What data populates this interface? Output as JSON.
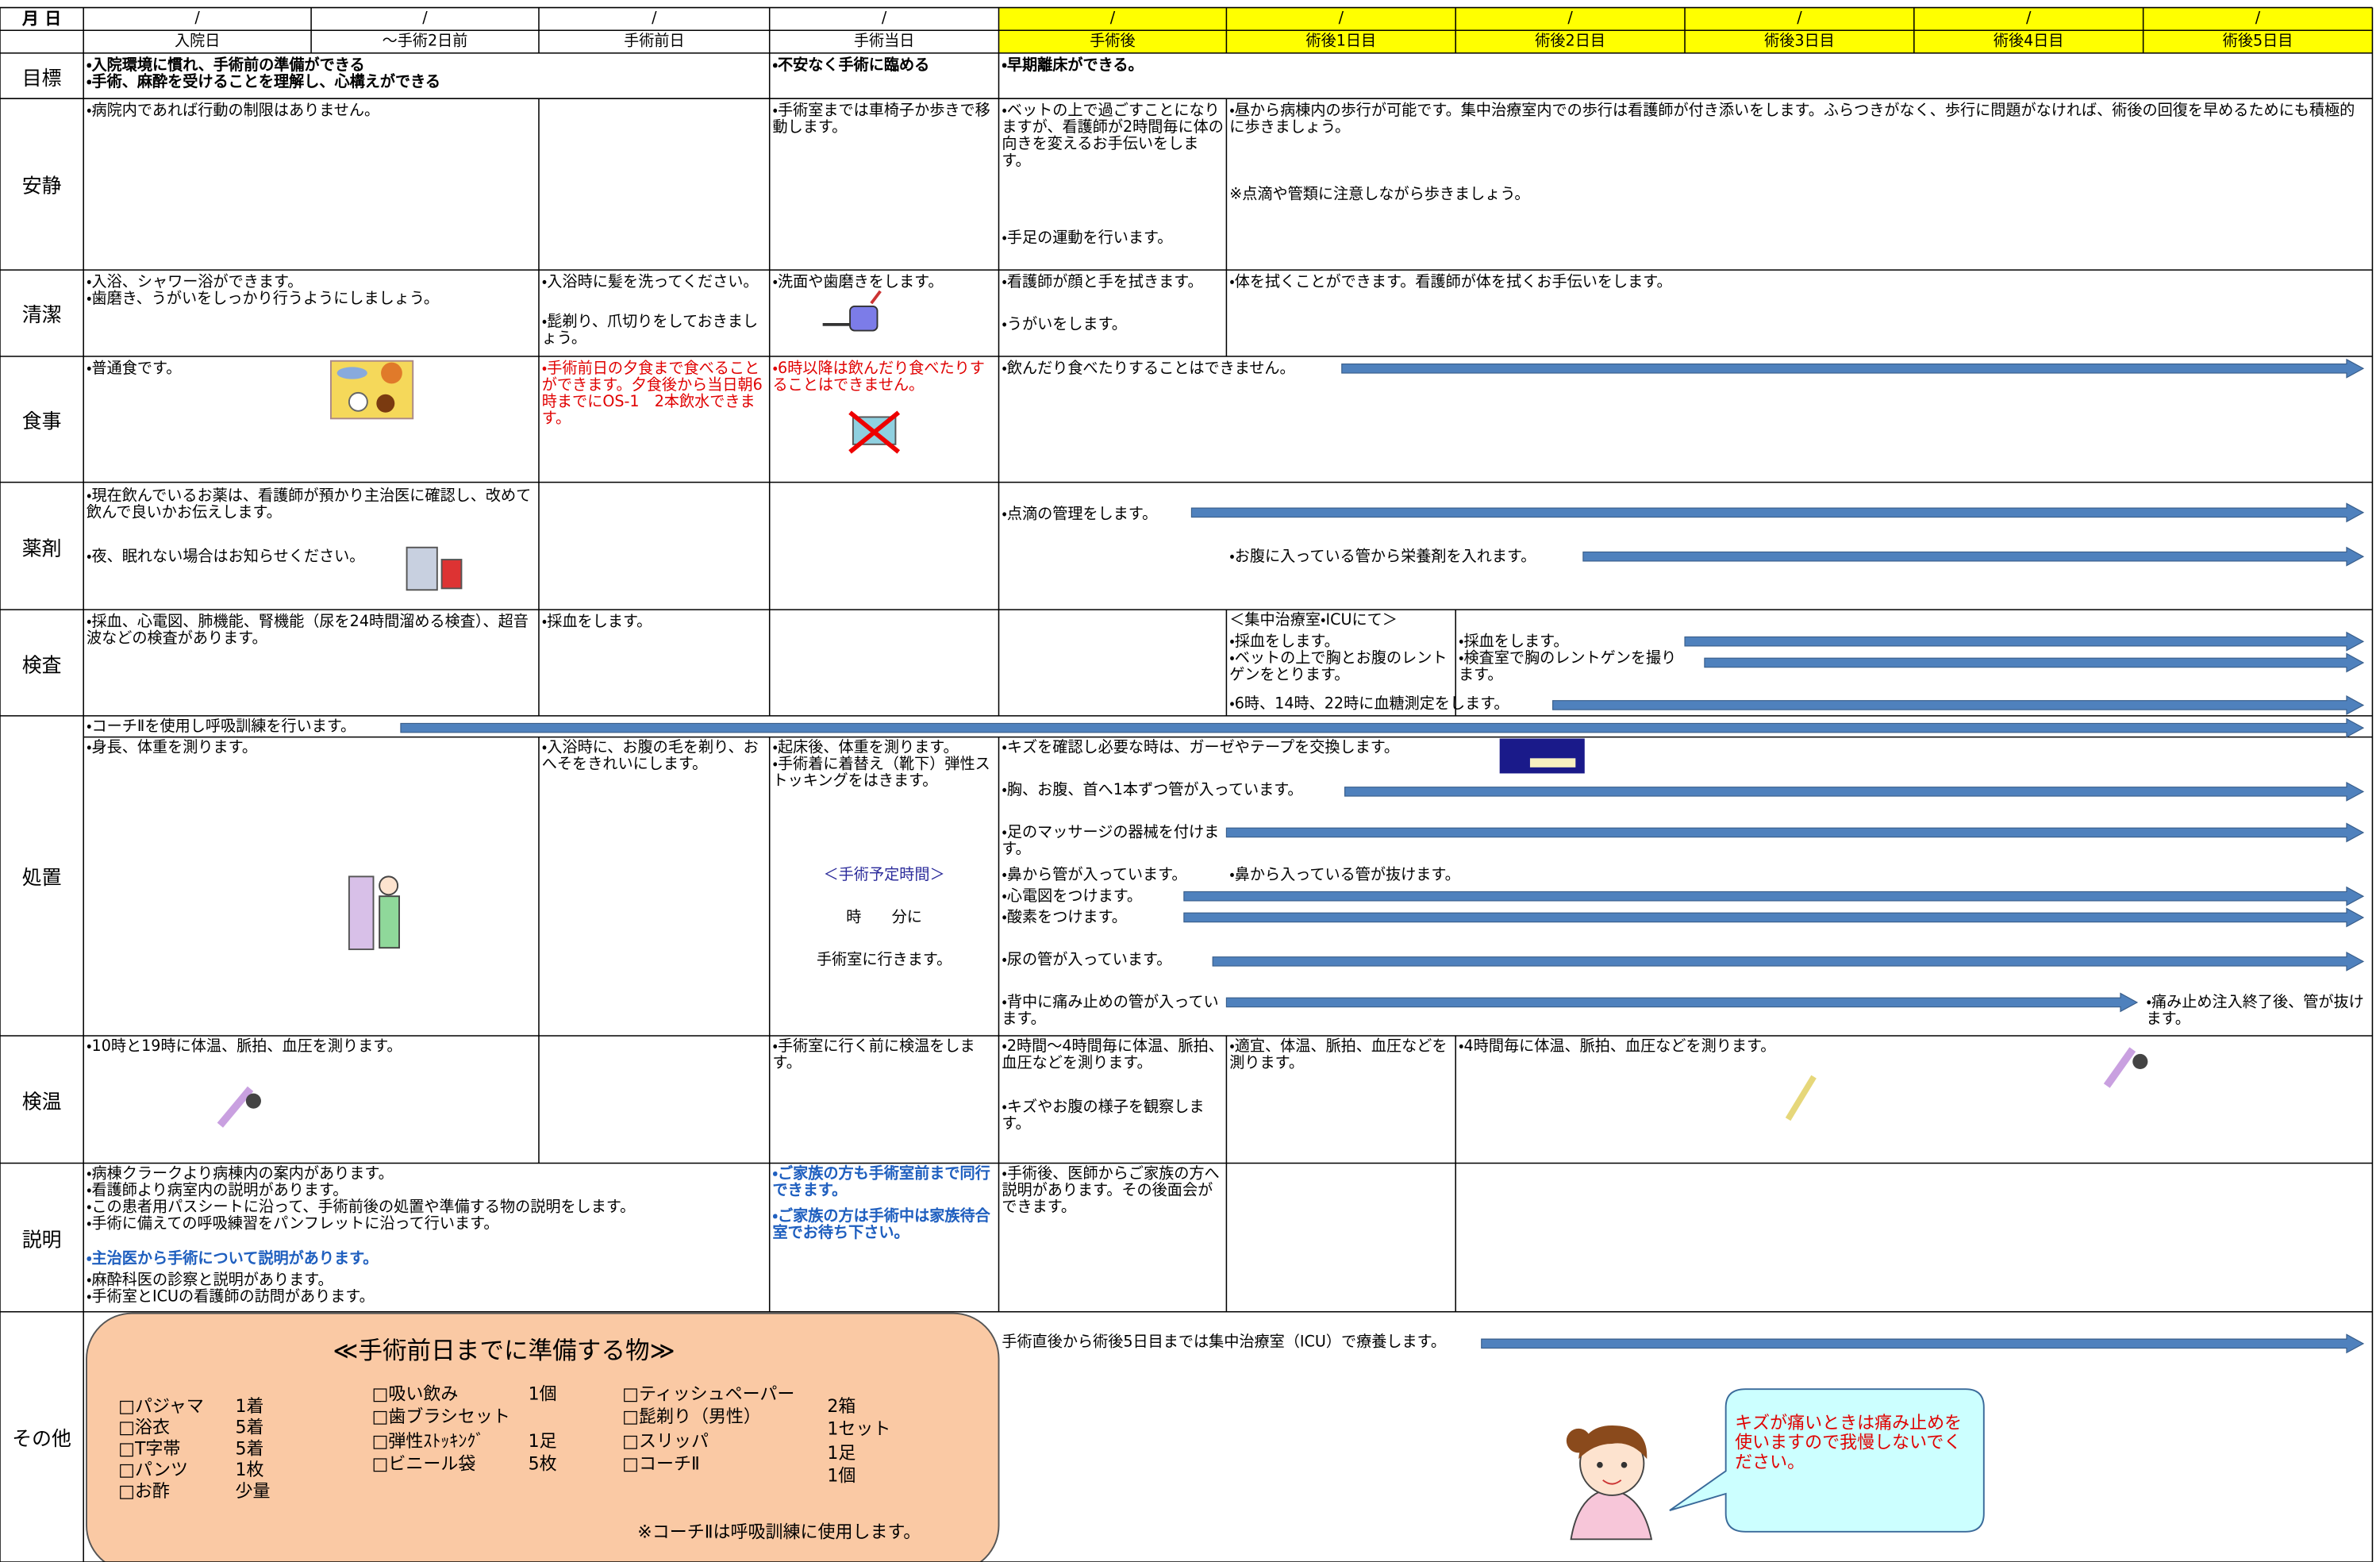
{
  "header": {
    "label": "月 日",
    "dates": [
      "/",
      "/",
      "/",
      "/",
      "/",
      "/",
      "/",
      "/",
      "/",
      "/"
    ],
    "days": [
      "入院日",
      "～手術2日前",
      "手術前日",
      "手術当日",
      "手術後",
      "術後1日目",
      "術後2日目",
      "術後3日目",
      "術後4日目",
      "術後5日目"
    ]
  },
  "rows": [
    {
      "label": "目標",
      "blocks": [
        [
          "・入院環境に慣れ、手術前の準備ができる",
          "・手術、麻酔を受けることを理解し、心構えができる"
        ],
        [
          "・不安なく手術に臨める"
        ],
        [
          "・早期離床ができる。"
        ]
      ]
    },
    {
      "label": "安静",
      "blocks": [
        [
          "・病院内であれば行動の制限はありません。"
        ],
        [
          "・手術室までは車椅子か歩きで移動します。"
        ],
        [
          "・ベットの上で過ごすことになりますが、看護師が2時間毎に体の向きを変えるお手伝いをします。"
        ],
        [
          "・手足の運動を行います。"
        ],
        [
          "・昼から病棟内の歩行が可能です。集中治療室内での歩行は看護師が付き添いをします。ふらつきがなく、歩行に問題がなければ、術後の回復を早めるためにも積極的に歩きましょう。"
        ],
        [
          "※点滴や管類に注意しながら歩きましょう。"
        ]
      ]
    },
    {
      "label": "清潔",
      "blocks": [
        [
          "・入浴、シャワー浴ができます。",
          "・歯磨き、うがいをしっかり行うようにしましょう。"
        ],
        [
          "・入浴時に髪を洗ってください。"
        ],
        [
          "・髭剃り、爪切りをしておきましょう。"
        ],
        [
          "・洗面や歯磨きをします。"
        ],
        [
          "・看護師が顔と手を拭きます。"
        ],
        [
          "・うがいをします。"
        ],
        [
          "・体を拭くことができます。看護師が体を拭くお手伝いをします。"
        ]
      ]
    },
    {
      "label": "食事",
      "blocks": [
        [
          "・普通食です。"
        ],
        [
          "・手術前日の夕食まで食べることができます。夕食後から当日朝6時までにOS-1　2本飲水できます。"
        ],
        [
          "・6時以降は飲んだり食べたりすることはできません。"
        ],
        [
          "・飲んだり食べたりすることはできません。"
        ]
      ]
    },
    {
      "label": "薬剤",
      "blocks": [
        [
          "・現在飲んでいるお薬は、看護師が預かり主治医に確認し、改めて飲んで良いかお伝えします。"
        ],
        [
          "・夜、眠れない場合はお知らせください。"
        ],
        [
          "・点滴の管理をします。"
        ],
        [
          "・お腹に入っている管から栄養剤を入れます。"
        ]
      ]
    },
    {
      "label": "検査",
      "blocks": [
        [
          "・採血、心電図、肺機能、腎機能（尿を24時間溜める検査）、超音波などの検査があります。"
        ],
        [
          "・採血をします。"
        ],
        [
          "＜集中治療室・ICUにて＞"
        ],
        [
          "・採血をします。",
          "・ベットの上で胸とお腹のレントゲンをとります。"
        ],
        [
          "・採血をします。",
          "・検査室で胸のレントゲンを撮ります。"
        ],
        [
          "・6時、14時、22時に血糖測定をします。"
        ]
      ]
    },
    {
      "label": "処置",
      "blocks": [
        [
          "・コーチⅡを使用し呼吸訓練を行います。"
        ],
        [
          "・身長、体重を測ります。"
        ],
        [
          "・入浴時に、お腹の毛を剃り、おへそをきれいにします。"
        ],
        [
          "・起床後、体重を測ります。",
          "・手術着に着替え（靴下）弾性ストッキングをはきます。"
        ],
        [
          "＜手術予定時間＞"
        ],
        [
          "時　　分に"
        ],
        [
          "手術室に行きます。"
        ],
        [
          "・キズを確認し必要な時は、ガーゼやテープを交換します。"
        ],
        [
          "・胸、お腹、首へ1本ずつ管が入っています。"
        ],
        [
          "・足のマッサージの器械を付けます。"
        ],
        [
          "・鼻から管が入っています。"
        ],
        [
          "・鼻から入っている管が抜けます。"
        ],
        [
          "・心電図をつけます。"
        ],
        [
          "・酸素をつけます。"
        ],
        [
          "・尿の管が入っています。"
        ],
        [
          "・背中に痛み止めの管が入っています。"
        ],
        [
          "・痛み止め注入終了後、管が抜けます。"
        ]
      ]
    },
    {
      "label": "検温",
      "blocks": [
        [
          "・10時と19時に体温、脈拍、血圧を測ります。"
        ],
        [
          "・手術室に行く前に検温をします。"
        ],
        [
          "・2時間～4時間毎に体温、脈拍、血圧などを測ります。"
        ],
        [
          "・キズやお腹の様子を観察します。"
        ],
        [
          "・適宜、体温、脈拍、血圧などを測ります。"
        ],
        [
          "・4時間毎に体温、脈拍、血圧などを測ります。"
        ]
      ]
    },
    {
      "label": "説明",
      "blocks": [
        [
          "・病棟クラークより病棟内の案内があります。",
          "・看護師より病室内の説明があります。",
          "・この患者用パスシートに沿って、手術前後の処置や準備する物の説明をします。",
          "・手術に備えての呼吸練習をパンフレットに沿って行います。"
        ],
        [
          "・主治医から手術について説明があります。"
        ],
        [
          "・麻酔科医の診察と説明があります。",
          "・手術室とICUの看護師の訪問があります。"
        ],
        [
          "・ご家族の方も手術室前まで同行できます。"
        ],
        [
          "・ご家族の方は手術中は家族待合室でお待ち下さい。"
        ],
        [
          "・手術後、医師からご家族の方へ説明があります。その後面会ができます。"
        ]
      ]
    },
    {
      "label": "その他",
      "blocks": [
        [
          "手術直後から術後5日目までは集中治療室（ICU）で療養します。"
        ]
      ]
    }
  ],
  "prep": {
    "title": "≪手術前日までに準備する物≫",
    "columns": [
      [
        {
          "name": "□パジャマ",
          "qty": "1着"
        },
        {
          "name": "□浴衣",
          "qty": "5着"
        },
        {
          "name": "□T字帯",
          "qty": "5着"
        },
        {
          "name": "□パンツ",
          "qty": "1枚"
        },
        {
          "name": "□お酢",
          "qty": "少量"
        }
      ],
      [
        {
          "name": "□吸い飲み",
          "qty": "1個"
        },
        {
          "name": "□歯ブラシセット"
        },
        {
          "name": "□弾性ｽﾄｯｷﾝｸﾞ",
          "qty": "1足"
        },
        {
          "name": "□ビニール袋",
          "qty": "5枚"
        }
      ],
      [
        {
          "name": "□ティッシュペーパー",
          "qty": "2箱"
        },
        {
          "name": "□髭剃り（男性）",
          "qty": "1セット"
        },
        {
          "name": "□スリッパ",
          "qty": "1足"
        },
        {
          "name": "□コーチⅡ",
          "qty": "1個"
        }
      ]
    ],
    "note": "※コーチⅡは呼吸訓練に使用します。"
  },
  "bubble": "キズが痛いときは痛み止めを使いますので我慢しないでください。"
}
